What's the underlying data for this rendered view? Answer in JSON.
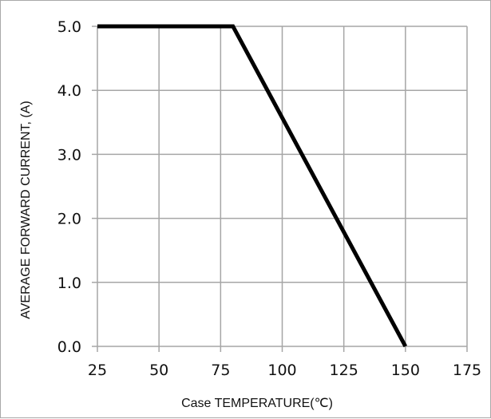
{
  "chart_data": {
    "type": "line",
    "title": "",
    "xlabel": "Case TEMPERATURE(℃)",
    "ylabel": "AVERAGE FORWARD CURRENT, (A)",
    "xlim": [
      25,
      175
    ],
    "ylim": [
      0,
      5
    ],
    "x_ticks": [
      25,
      50,
      75,
      100,
      125,
      150,
      175
    ],
    "y_ticks": [
      0,
      1,
      2,
      3,
      4,
      5
    ],
    "x_tick_labels": [
      "25",
      "50",
      "75",
      "100",
      "125",
      "150",
      "175"
    ],
    "y_tick_labels": [
      "0.0",
      "1.0",
      "2.0",
      "3.0",
      "4.0",
      "5.0"
    ],
    "grid": true,
    "legend": "none",
    "series": [
      {
        "x": [
          25,
          80,
          150
        ],
        "y": [
          5.0,
          5.0,
          0.0
        ]
      }
    ],
    "line_color": "#000000",
    "grid_color": "#a6a6a6"
  }
}
